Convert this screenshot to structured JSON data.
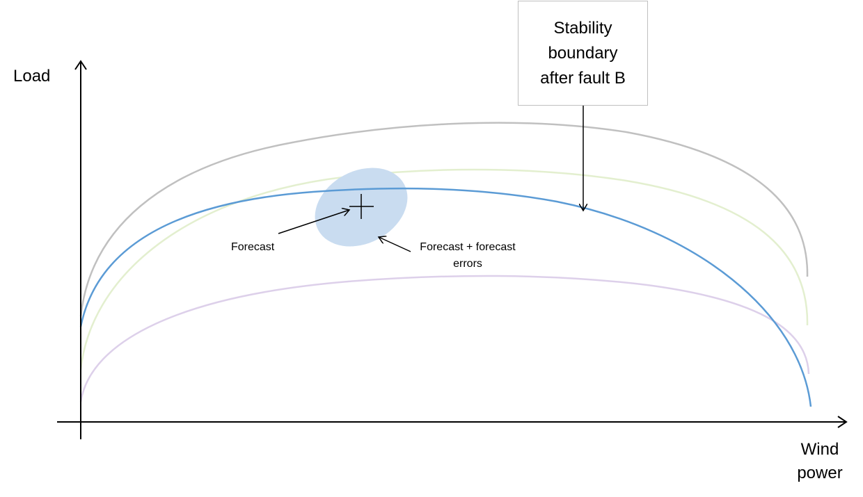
{
  "axes": {
    "y_label": "Load",
    "x_label_line1": "Wind",
    "x_label_line2": "power"
  },
  "annotations": {
    "forecast": "Forecast",
    "forecast_errors_line1": "Forecast + forecast",
    "forecast_errors_line2": "errors"
  },
  "callout": {
    "text": "Stability boundary after fault B"
  },
  "curves": [
    {
      "id": "gray-boundary",
      "color": "#c0c0c0"
    },
    {
      "id": "green-boundary",
      "color": "#e3efcf"
    },
    {
      "id": "blue-boundary",
      "color": "#5b9bd5",
      "highlighted": true
    },
    {
      "id": "purple-boundary",
      "color": "#ddd0ea"
    }
  ],
  "colors": {
    "axis": "#000000",
    "uncertainty_ellipse": "#c9dcf0"
  }
}
